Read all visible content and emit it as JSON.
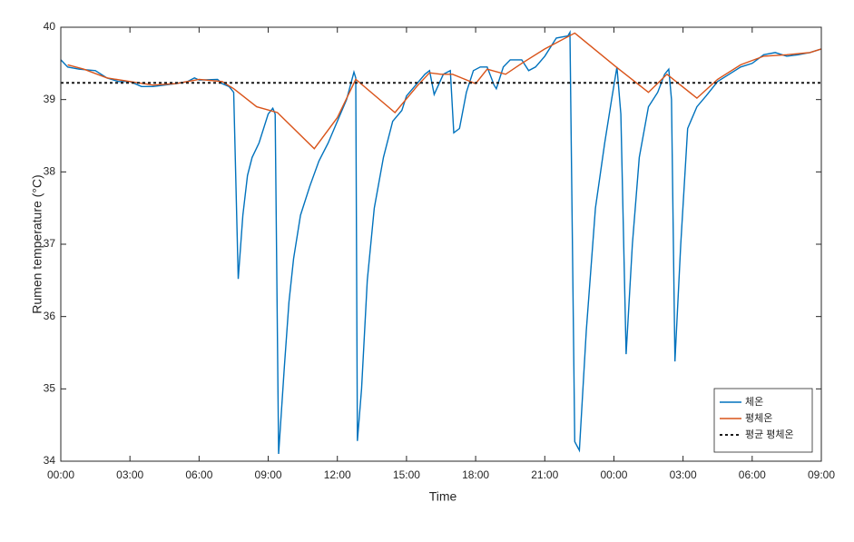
{
  "chart_data": {
    "type": "line",
    "xlabel": "Time",
    "ylabel": "Rumen temperature (°C)",
    "xlim": [
      0,
      33
    ],
    "xticks": [
      {
        "value": 0,
        "label": "00:00"
      },
      {
        "value": 3,
        "label": "03:00"
      },
      {
        "value": 6,
        "label": "06:00"
      },
      {
        "value": 9,
        "label": "09:00"
      },
      {
        "value": 12,
        "label": "12:00"
      },
      {
        "value": 15,
        "label": "15:00"
      },
      {
        "value": 18,
        "label": "18:00"
      },
      {
        "value": 21,
        "label": "21:00"
      },
      {
        "value": 24,
        "label": "00:00"
      },
      {
        "value": 27,
        "label": "03:00"
      },
      {
        "value": 30,
        "label": "06:00"
      },
      {
        "value": 33,
        "label": "09:00"
      }
    ],
    "ylim": [
      34,
      40
    ],
    "yticks": [
      34,
      35,
      36,
      37,
      38,
      39,
      40
    ],
    "legend": "lower right",
    "series": [
      {
        "name": "체온",
        "color": "#0072bd",
        "dash": "solid",
        "x": [
          0,
          0.3,
          0.8,
          1.5,
          2.0,
          2.5,
          3.0,
          3.5,
          4.0,
          4.5,
          5.0,
          5.5,
          5.8,
          6.0,
          6.8,
          7.0,
          7.3,
          7.5,
          7.7,
          7.9,
          8.1,
          8.3,
          8.6,
          9.0,
          9.2,
          9.3,
          9.45,
          9.7,
          9.9,
          10.1,
          10.4,
          10.8,
          11.2,
          11.6,
          12.0,
          12.4,
          12.72,
          12.8,
          12.87,
          13.05,
          13.3,
          13.6,
          14.0,
          14.4,
          14.8,
          15.0,
          15.4,
          15.8,
          16.0,
          16.2,
          16.6,
          16.9,
          17.05,
          17.3,
          17.6,
          17.9,
          18.2,
          18.5,
          18.8,
          18.9,
          19.2,
          19.5,
          20.0,
          20.3,
          20.6,
          21.0,
          21.5,
          22.0,
          22.09,
          22.3,
          22.5,
          22.8,
          23.2,
          23.6,
          23.9,
          24.13,
          24.3,
          24.53,
          24.8,
          25.1,
          25.5,
          25.9,
          26.2,
          26.38,
          26.5,
          26.65,
          26.9,
          27.2,
          27.6,
          28.0,
          28.5,
          29.0,
          29.5,
          30.0,
          30.5,
          31.0,
          31.5,
          32.0,
          32.5,
          33.0
        ],
        "values": [
          39.55,
          39.45,
          39.42,
          39.4,
          39.3,
          39.25,
          39.25,
          39.18,
          39.18,
          39.2,
          39.22,
          39.25,
          39.3,
          39.27,
          39.28,
          39.22,
          39.18,
          39.1,
          36.52,
          37.4,
          37.95,
          38.2,
          38.4,
          38.8,
          38.88,
          38.8,
          34.1,
          35.3,
          36.2,
          36.8,
          37.4,
          37.8,
          38.15,
          38.4,
          38.7,
          39.0,
          39.38,
          39.3,
          34.28,
          35.0,
          36.5,
          37.5,
          38.2,
          38.7,
          38.85,
          39.05,
          39.2,
          39.35,
          39.4,
          39.07,
          39.35,
          39.4,
          38.54,
          38.6,
          39.1,
          39.4,
          39.45,
          39.45,
          39.2,
          39.15,
          39.45,
          39.55,
          39.55,
          39.4,
          39.45,
          39.6,
          39.85,
          39.88,
          39.93,
          34.27,
          34.15,
          35.8,
          37.5,
          38.4,
          39.0,
          39.45,
          38.8,
          35.48,
          37.0,
          38.2,
          38.9,
          39.1,
          39.35,
          39.42,
          39.0,
          35.38,
          37.0,
          38.6,
          38.9,
          39.05,
          39.25,
          39.35,
          39.45,
          39.5,
          39.62,
          39.65,
          39.6,
          39.62,
          39.65,
          39.7
        ]
      },
      {
        "name": "평체온",
        "color": "#d95319",
        "dash": "solid",
        "x": [
          0.3,
          1.0,
          2.0,
          3.0,
          4.0,
          5.0,
          6.0,
          7.0,
          7.5,
          8.5,
          9.4,
          11.0,
          12.0,
          12.8,
          14.5,
          15.5,
          16.0,
          16.5,
          17.0,
          18.0,
          18.5,
          19.3,
          20.0,
          21.0,
          22.3,
          24.1,
          25.5,
          26.3,
          27.6,
          28.5,
          29.5,
          30.5,
          31.5,
          32.5,
          33.0
        ],
        "values": [
          39.48,
          39.42,
          39.3,
          39.25,
          39.2,
          39.22,
          39.28,
          39.25,
          39.15,
          38.9,
          38.82,
          38.32,
          38.75,
          39.28,
          38.82,
          39.2,
          39.37,
          39.35,
          39.35,
          39.22,
          39.42,
          39.35,
          39.5,
          39.7,
          39.92,
          39.45,
          39.1,
          39.35,
          39.02,
          39.28,
          39.48,
          39.6,
          39.62,
          39.65,
          39.7
        ]
      },
      {
        "name": "평균 평체온",
        "color": "#1a1a1a",
        "dash": "dotted",
        "x": [
          0,
          33
        ],
        "values": [
          39.23,
          39.23
        ]
      }
    ]
  }
}
